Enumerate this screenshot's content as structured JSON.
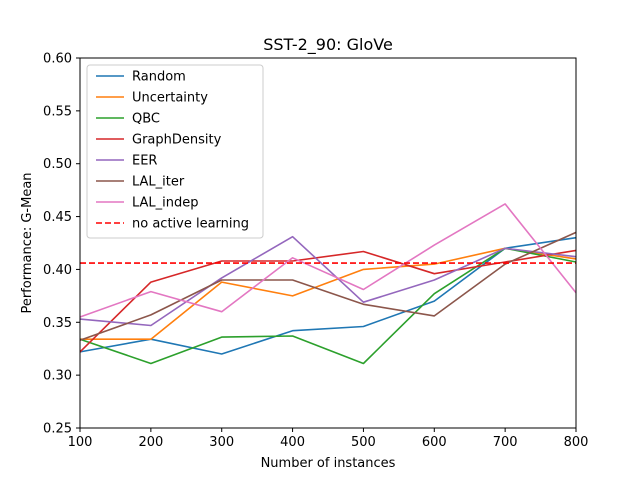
{
  "chart_data": {
    "type": "line",
    "title": "SST-2_90: GloVe",
    "xlabel": "Number of instances",
    "ylabel": "Performance: G-Mean",
    "xlim": [
      100,
      800
    ],
    "ylim": [
      0.25,
      0.6
    ],
    "x_ticks": [
      "100",
      "200",
      "300",
      "400",
      "500",
      "600",
      "700",
      "800"
    ],
    "y_ticks": [
      "0.25",
      "0.30",
      "0.35",
      "0.40",
      "0.45",
      "0.50",
      "0.55",
      "0.60"
    ],
    "x": [
      100,
      200,
      300,
      400,
      500,
      600,
      700,
      800
    ],
    "legend_position": "top-left",
    "grid": false,
    "series": [
      {
        "name": "Random",
        "color": "#1f77b4",
        "values": [
          0.322,
          0.334,
          0.32,
          0.342,
          0.346,
          0.37,
          0.42,
          0.43
        ]
      },
      {
        "name": "Uncertainty",
        "color": "#ff7f0e",
        "values": [
          0.334,
          0.334,
          0.388,
          0.375,
          0.4,
          0.405,
          0.42,
          0.41
        ]
      },
      {
        "name": "QBC",
        "color": "#2ca02c",
        "values": [
          0.334,
          0.311,
          0.336,
          0.337,
          0.311,
          0.377,
          0.42,
          0.407
        ]
      },
      {
        "name": "GraphDensity",
        "color": "#d62728",
        "values": [
          0.322,
          0.388,
          0.408,
          0.408,
          0.417,
          0.396,
          0.407,
          0.418
        ]
      },
      {
        "name": "EER",
        "color": "#9467bd",
        "values": [
          0.353,
          0.347,
          0.392,
          0.431,
          0.369,
          0.39,
          0.42,
          0.412
        ]
      },
      {
        "name": "LAL_iter",
        "color": "#8c564b",
        "values": [
          0.333,
          0.357,
          0.39,
          0.39,
          0.367,
          0.356,
          0.405,
          0.435
        ]
      },
      {
        "name": "LAL_indep",
        "color": "#e377c2",
        "values": [
          0.355,
          0.379,
          0.36,
          0.411,
          0.381,
          0.423,
          0.462,
          0.378
        ]
      }
    ],
    "reference": {
      "name": "no active learning",
      "color": "#ff0000",
      "value": 0.406,
      "style": "dashed"
    }
  }
}
